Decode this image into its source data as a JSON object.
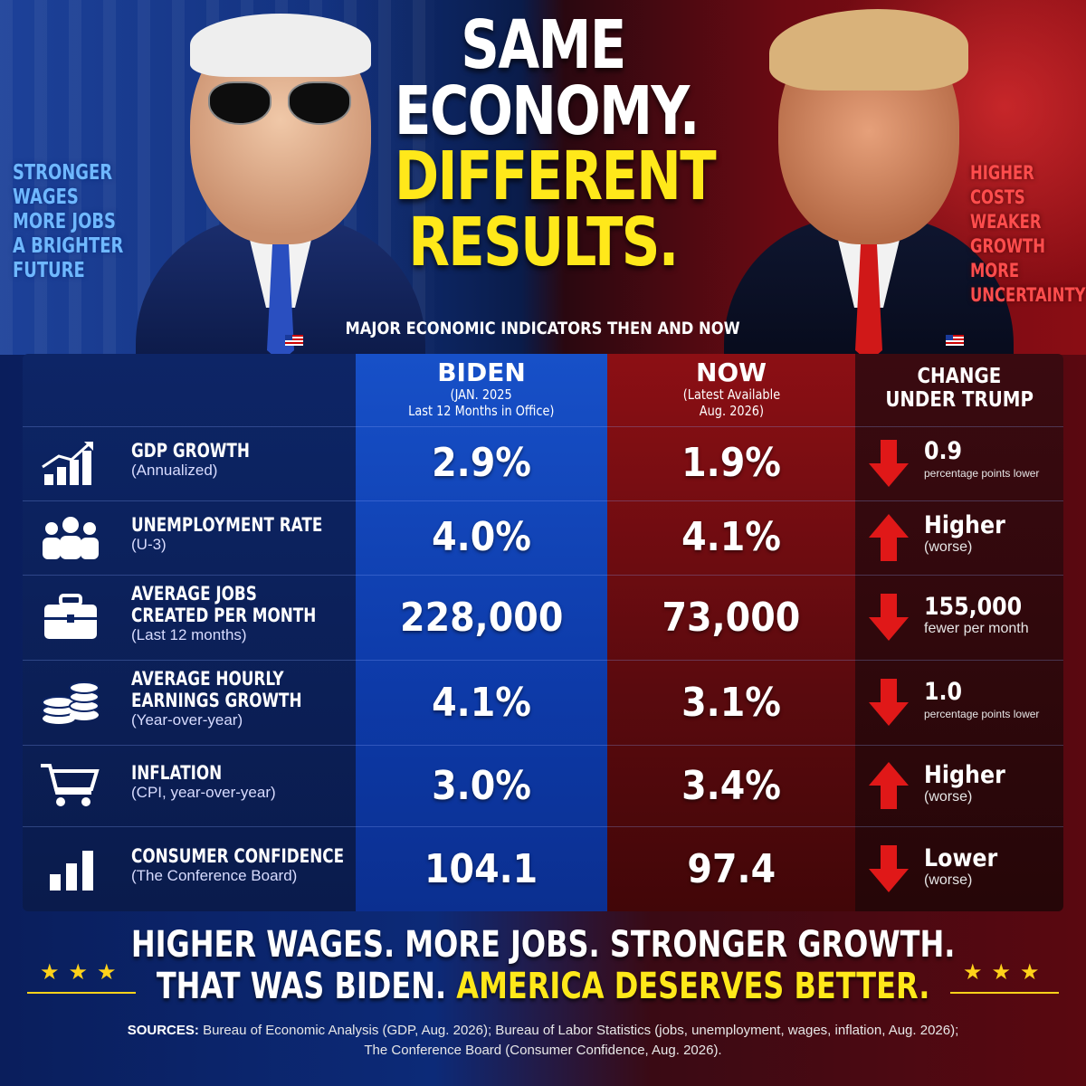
{
  "left_slogan": [
    "STRONGER",
    "WAGES",
    "MORE JOBS",
    "A BRIGHTER",
    "FUTURE"
  ],
  "right_slogan": [
    "HIGHER",
    "COSTS",
    "WEAKER",
    "GROWTH",
    "MORE",
    "UNCERTAINTY"
  ],
  "headline": {
    "line1": "SAME",
    "line2": "ECONOMY.",
    "line3": "DIFFERENT",
    "line4": "RESULTS."
  },
  "subhead": "MAJOR ECONOMIC INDICATORS THEN AND NOW",
  "table": {
    "biden_header": {
      "title": "BIDEN",
      "line1": "(JAN. 2025",
      "line2": "Last 12 Months in Office)"
    },
    "now_header": {
      "title": "NOW",
      "line1": "(Latest Available",
      "line2": "Aug. 2026)"
    },
    "change_header": {
      "line1": "CHANGE",
      "line2": "UNDER TRUMP"
    },
    "rows": [
      {
        "icon": "growth-chart-icon",
        "label_lines": [
          "GDP GROWTH"
        ],
        "sub": "(Annualized)",
        "biden": "2.9%",
        "now": "1.9%",
        "direction": "down",
        "change": "0.9",
        "note": "percentage points lower"
      },
      {
        "icon": "people-icon",
        "label_lines": [
          "UNEMPLOYMENT RATE"
        ],
        "sub": "(U-3)",
        "biden": "4.0%",
        "now": "4.1%",
        "direction": "up",
        "change": "Higher",
        "note": "(worse)"
      },
      {
        "icon": "briefcase-icon",
        "label_lines": [
          "AVERAGE JOBS",
          "CREATED PER MONTH"
        ],
        "sub": "(Last 12 months)",
        "biden": "228,000",
        "now": "73,000",
        "direction": "down",
        "change": "155,000",
        "note": "fewer per month"
      },
      {
        "icon": "coins-icon",
        "label_lines": [
          "AVERAGE HOURLY",
          "EARNINGS GROWTH"
        ],
        "sub": "(Year-over-year)",
        "biden": "4.1%",
        "now": "3.1%",
        "direction": "down",
        "change": "1.0",
        "note": "percentage points lower"
      },
      {
        "icon": "cart-icon",
        "label_lines": [
          "INFLATION"
        ],
        "sub": "(CPI, year-over-year)",
        "biden": "3.0%",
        "now": "3.4%",
        "direction": "up",
        "change": "Higher",
        "note": "(worse)"
      },
      {
        "icon": "bar-chart-icon",
        "label_lines": [
          "CONSUMER CONFIDENCE"
        ],
        "sub": "(The Conference Board)",
        "biden": "104.1",
        "now": "97.4",
        "direction": "down",
        "change": "Lower",
        "note": "(worse)"
      }
    ]
  },
  "tagline": {
    "line1": "HIGHER WAGES. MORE JOBS. STRONGER GROWTH.",
    "line2_white": "THAT WAS BIDEN.",
    "line2_yellow": "AMERICA DESERVES BETTER."
  },
  "stars": "★★★",
  "sources": {
    "label": "SOURCES:",
    "text1": "Bureau of Economic Analysis (GDP, Aug. 2026); Bureau of Labor Statistics (jobs, unemployment, wages, inflation, Aug. 2026);",
    "text2": "The Conference Board (Consumer Confidence, Aug. 2026)."
  },
  "colors": {
    "accent_yellow": "#ffe81a",
    "biden_blue": "#1750c8",
    "now_red": "#8c0f14",
    "arrow_red": "#e01818"
  }
}
